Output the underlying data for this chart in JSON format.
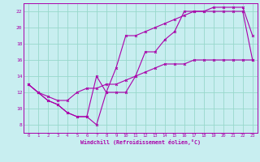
{
  "background_color": "#c8eef0",
  "grid_color": "#98d8cc",
  "line_color": "#aa00aa",
  "xlim": [
    -0.5,
    23.5
  ],
  "ylim": [
    7,
    23
  ],
  "yticks": [
    8,
    10,
    12,
    14,
    16,
    18,
    20,
    22
  ],
  "xticks": [
    0,
    1,
    2,
    3,
    4,
    5,
    6,
    7,
    8,
    9,
    10,
    11,
    12,
    13,
    14,
    15,
    16,
    17,
    18,
    19,
    20,
    21,
    22,
    23
  ],
  "xlabel": "Windchill (Refroidissement éolien,°C)",
  "series1_x": [
    0,
    1,
    2,
    3,
    4,
    5,
    6,
    7,
    8,
    9,
    10,
    11,
    12,
    13,
    14,
    15,
    16,
    17,
    18,
    19,
    20,
    21,
    22,
    23
  ],
  "series1_y": [
    13.0,
    12.0,
    11.0,
    10.5,
    9.5,
    9.0,
    9.0,
    8.0,
    12.0,
    12.0,
    12.0,
    14.0,
    17.0,
    17.0,
    18.5,
    19.5,
    22.0,
    22.0,
    22.0,
    22.0,
    22.0,
    22.0,
    22.0,
    16.0
  ],
  "series2_x": [
    0,
    1,
    2,
    3,
    4,
    5,
    6,
    7,
    8,
    9,
    10,
    11,
    12,
    13,
    14,
    15,
    16,
    17,
    18,
    19,
    20,
    21,
    22,
    23
  ],
  "series2_y": [
    13.0,
    12.0,
    11.0,
    10.5,
    9.5,
    9.0,
    9.0,
    14.0,
    12.0,
    15.0,
    19.0,
    19.0,
    19.5,
    20.0,
    20.5,
    21.0,
    21.5,
    22.0,
    22.0,
    22.5,
    22.5,
    22.5,
    22.5,
    19.0
  ],
  "series3_x": [
    0,
    1,
    2,
    3,
    4,
    5,
    6,
    7,
    8,
    9,
    10,
    11,
    12,
    13,
    14,
    15,
    16,
    17,
    18,
    19,
    20,
    21,
    22,
    23
  ],
  "series3_y": [
    13.0,
    12.0,
    11.5,
    11.0,
    11.0,
    12.0,
    12.5,
    12.5,
    13.0,
    13.0,
    13.5,
    14.0,
    14.5,
    15.0,
    15.5,
    15.5,
    15.5,
    16.0,
    16.0,
    16.0,
    16.0,
    16.0,
    16.0,
    16.0
  ]
}
